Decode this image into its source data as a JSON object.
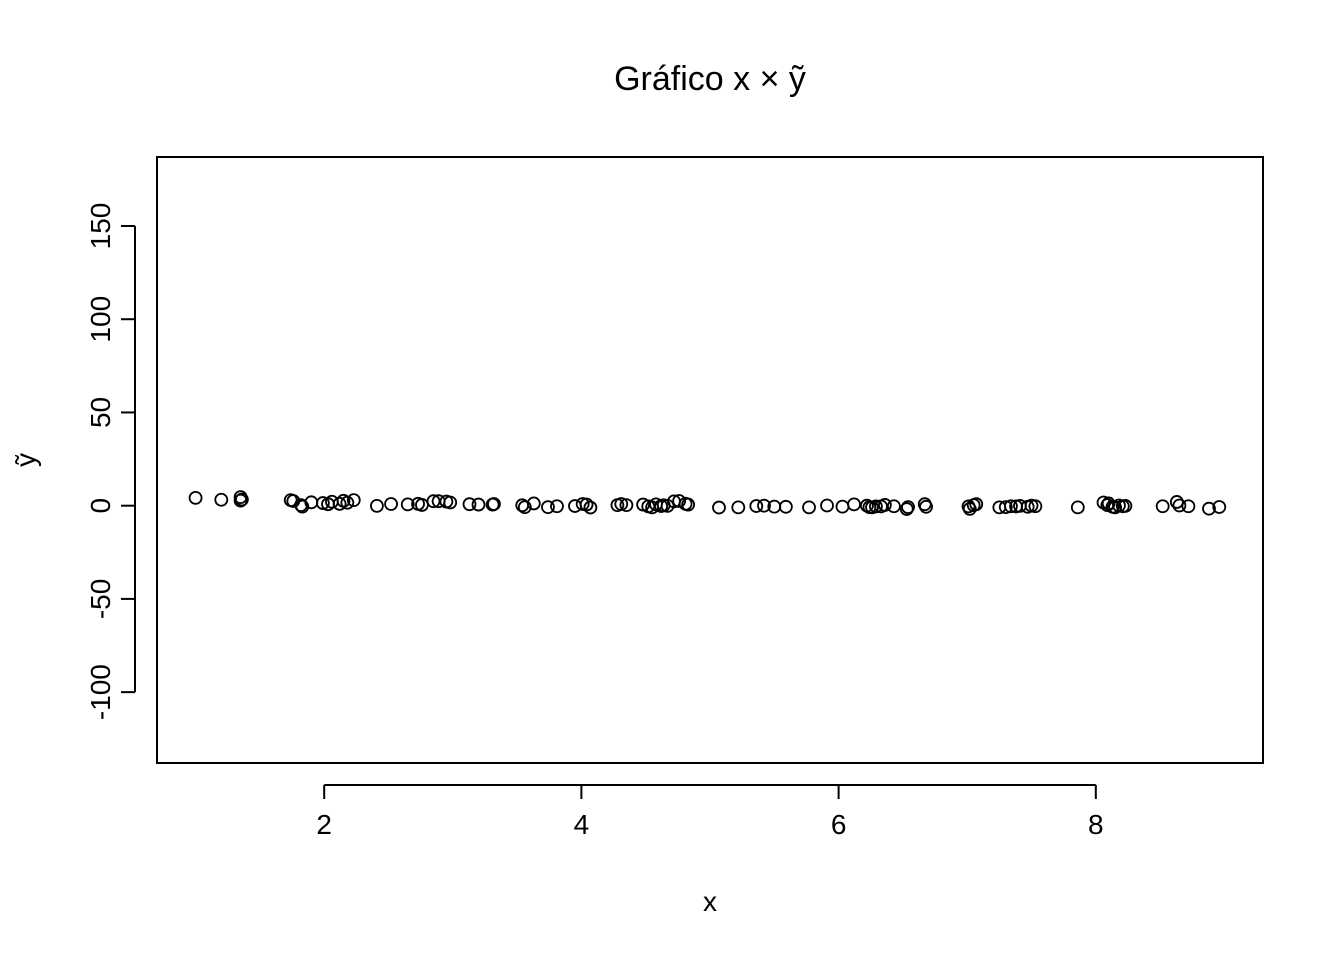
{
  "chart_data": {
    "type": "scatter",
    "title": "Gráfico x × ỹ",
    "xlabel": "x",
    "ylabel": "ỹ",
    "xlim": [
      0.7,
      9.3
    ],
    "ylim": [
      -138,
      187
    ],
    "x_ticks": [
      2,
      4,
      6,
      8
    ],
    "x_tick_labels": [
      "2",
      "4",
      "6",
      "8"
    ],
    "y_ticks": [
      -100,
      -50,
      0,
      50,
      100,
      150
    ],
    "y_tick_labels": [
      "-100",
      "-50",
      "0",
      "50",
      "100",
      "150"
    ],
    "grid": false,
    "legend": "none",
    "marker": "open-circle",
    "points": [
      {
        "x": 1.0,
        "y": 4.2
      },
      {
        "x": 1.2,
        "y": 3.2
      },
      {
        "x": 1.35,
        "y": 4.6
      },
      {
        "x": 1.35,
        "y": 2.7
      },
      {
        "x": 1.36,
        "y": 3.3
      },
      {
        "x": 1.74,
        "y": 3.0
      },
      {
        "x": 1.76,
        "y": 2.5
      },
      {
        "x": 1.82,
        "y": 0.3
      },
      {
        "x": 1.83,
        "y": -0.5
      },
      {
        "x": 1.9,
        "y": 1.8
      },
      {
        "x": 1.99,
        "y": 1.4
      },
      {
        "x": 2.03,
        "y": 0.8
      },
      {
        "x": 2.06,
        "y": 2.1
      },
      {
        "x": 2.12,
        "y": 1.0
      },
      {
        "x": 2.15,
        "y": 2.6
      },
      {
        "x": 2.18,
        "y": 1.6
      },
      {
        "x": 2.23,
        "y": 3.0
      },
      {
        "x": 2.41,
        "y": -0.1
      },
      {
        "x": 2.52,
        "y": 0.9
      },
      {
        "x": 2.65,
        "y": 0.7
      },
      {
        "x": 2.73,
        "y": 1.0
      },
      {
        "x": 2.76,
        "y": 0.4
      },
      {
        "x": 2.85,
        "y": 2.4
      },
      {
        "x": 2.89,
        "y": 2.4
      },
      {
        "x": 2.95,
        "y": 2.2
      },
      {
        "x": 2.98,
        "y": 1.7
      },
      {
        "x": 3.13,
        "y": 0.8
      },
      {
        "x": 3.2,
        "y": 0.6
      },
      {
        "x": 3.31,
        "y": 0.6
      },
      {
        "x": 3.32,
        "y": 0.9
      },
      {
        "x": 3.54,
        "y": 0.2
      },
      {
        "x": 3.56,
        "y": -0.8
      },
      {
        "x": 3.63,
        "y": 1.2
      },
      {
        "x": 3.74,
        "y": -0.8
      },
      {
        "x": 3.81,
        "y": -0.3
      },
      {
        "x": 3.95,
        "y": -0.2
      },
      {
        "x": 4.01,
        "y": 0.9
      },
      {
        "x": 4.04,
        "y": 0.6
      },
      {
        "x": 4.07,
        "y": -1.0
      },
      {
        "x": 4.28,
        "y": 0.3
      },
      {
        "x": 4.31,
        "y": 0.9
      },
      {
        "x": 4.35,
        "y": 0.3
      },
      {
        "x": 4.48,
        "y": 0.6
      },
      {
        "x": 4.52,
        "y": -0.4
      },
      {
        "x": 4.55,
        "y": -0.9
      },
      {
        "x": 4.58,
        "y": 0.7
      },
      {
        "x": 4.62,
        "y": -0.2
      },
      {
        "x": 4.64,
        "y": 0.2
      },
      {
        "x": 4.67,
        "y": -0.1
      },
      {
        "x": 4.72,
        "y": 2.3
      },
      {
        "x": 4.76,
        "y": 2.5
      },
      {
        "x": 4.81,
        "y": 1.0
      },
      {
        "x": 4.83,
        "y": 0.6
      },
      {
        "x": 5.07,
        "y": -1.0
      },
      {
        "x": 5.22,
        "y": -0.9
      },
      {
        "x": 5.36,
        "y": -0.2
      },
      {
        "x": 5.42,
        "y": 0.0
      },
      {
        "x": 5.5,
        "y": -0.5
      },
      {
        "x": 5.59,
        "y": -0.6
      },
      {
        "x": 5.77,
        "y": -0.9
      },
      {
        "x": 5.91,
        "y": 0.1
      },
      {
        "x": 6.03,
        "y": -0.5
      },
      {
        "x": 6.12,
        "y": 0.7
      },
      {
        "x": 6.22,
        "y": 0.0
      },
      {
        "x": 6.24,
        "y": -0.8
      },
      {
        "x": 6.26,
        "y": -0.9
      },
      {
        "x": 6.29,
        "y": -0.4
      },
      {
        "x": 6.33,
        "y": -0.4
      },
      {
        "x": 6.36,
        "y": 0.4
      },
      {
        "x": 6.43,
        "y": -0.3
      },
      {
        "x": 6.53,
        "y": -1.8
      },
      {
        "x": 6.54,
        "y": -0.8
      },
      {
        "x": 6.67,
        "y": 0.8
      },
      {
        "x": 6.68,
        "y": -0.6
      },
      {
        "x": 7.01,
        "y": -0.4
      },
      {
        "x": 7.02,
        "y": -1.7
      },
      {
        "x": 7.05,
        "y": 0.3
      },
      {
        "x": 7.07,
        "y": 0.8
      },
      {
        "x": 7.25,
        "y": -0.9
      },
      {
        "x": 7.3,
        "y": -0.8
      },
      {
        "x": 7.34,
        "y": -0.3
      },
      {
        "x": 7.38,
        "y": -0.4
      },
      {
        "x": 7.41,
        "y": -0.1
      },
      {
        "x": 7.47,
        "y": -0.6
      },
      {
        "x": 7.5,
        "y": 0.0
      },
      {
        "x": 7.53,
        "y": -0.3
      },
      {
        "x": 7.86,
        "y": -0.9
      },
      {
        "x": 8.06,
        "y": 1.7
      },
      {
        "x": 8.09,
        "y": 0.3
      },
      {
        "x": 8.1,
        "y": 1.2
      },
      {
        "x": 8.13,
        "y": -0.6
      },
      {
        "x": 8.15,
        "y": -0.9
      },
      {
        "x": 8.18,
        "y": 0.1
      },
      {
        "x": 8.21,
        "y": -0.3
      },
      {
        "x": 8.23,
        "y": -0.1
      },
      {
        "x": 8.52,
        "y": -0.3
      },
      {
        "x": 8.63,
        "y": 2.0
      },
      {
        "x": 8.65,
        "y": 0.1
      },
      {
        "x": 8.72,
        "y": -0.3
      },
      {
        "x": 8.88,
        "y": -1.6
      },
      {
        "x": 8.96,
        "y": -0.7
      }
    ]
  }
}
